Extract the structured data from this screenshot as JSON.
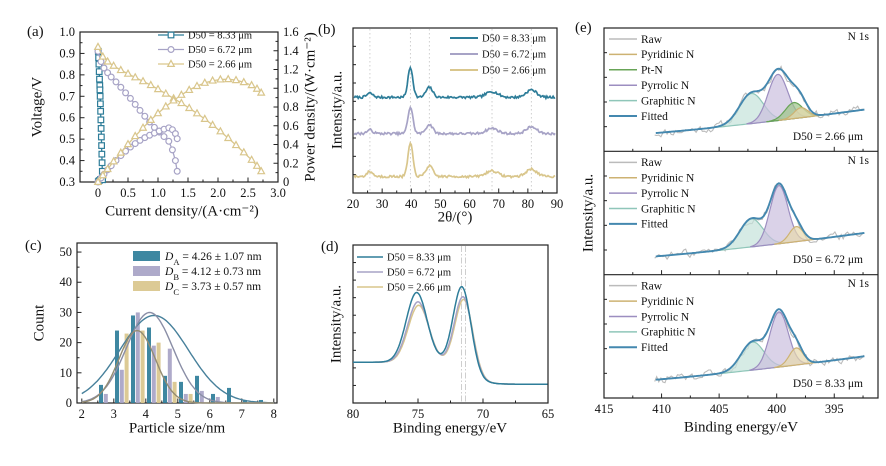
{
  "colors": {
    "teal": "#2E7D99",
    "purple": "#A7A3C6",
    "tan": "#D9C68C",
    "fitted": "#4488AF",
    "raw": "#BBBBBB",
    "mint_fill": "#C5E3DA",
    "mint_stroke": "#8FC6B9",
    "violet_fill": "#CBBFDE",
    "violet_stroke": "#9C8EC0",
    "gold_fill": "#E7D9AC",
    "gold_stroke": "#CDB272",
    "green_fill": "#9CC488",
    "green_stroke": "#68A457",
    "grid": "#C9C9C9",
    "axis": "#222222",
    "curveA": "#47809B",
    "curveB": "#8A8EA6",
    "curveC": "#948C72"
  },
  "chart_data": [
    {
      "panel": "a",
      "letter": "(a)",
      "type": "line",
      "xlabel": "Current density/(A·cm⁻²)",
      "ylabel_left": "Voltage/V",
      "ylabel_right": "Power density/(W·cm⁻²)",
      "xlim": [
        -0.3,
        3.0
      ],
      "xticks": [
        0,
        0.5,
        1.0,
        1.5,
        2.0,
        2.5,
        3.0
      ],
      "xtick_labels": [
        "0",
        "0.5",
        "1.0",
        "1.5",
        "2.0",
        "2.5",
        "3.0"
      ],
      "ylim_left": [
        0.3,
        1.0
      ],
      "yticks_left": [
        0.3,
        0.4,
        0.5,
        0.6,
        0.7,
        0.8,
        0.9,
        1.0
      ],
      "ytick_left_labels": [
        "0.3",
        "0.4",
        "0.5",
        "0.6",
        "0.7",
        "0.8",
        "0.9",
        "1.0"
      ],
      "ylim_right": [
        0,
        1.6
      ],
      "yticks_right": [
        0,
        0.2,
        0.4,
        0.6,
        0.8,
        1.0,
        1.2,
        1.4,
        1.6
      ],
      "ytick_right_labels": [
        "0",
        "0.2",
        "0.4",
        "0.6",
        "0.8",
        "1.0",
        "1.2",
        "1.4",
        "1.6"
      ],
      "legend": [
        "D50 = 8.33 μm",
        "D50 = 6.72 μm",
        "D50 = 2.66 μm"
      ],
      "series": [
        {
          "name": "D50 = 8.33 μm voltage",
          "axis": "left",
          "marker": "square",
          "color_key": "teal",
          "points": [
            [
              0.005,
              0.91
            ],
            [
              0.01,
              0.88
            ],
            [
              0.015,
              0.85
            ],
            [
              0.02,
              0.815
            ],
            [
              0.025,
              0.78
            ],
            [
              0.03,
              0.75
            ],
            [
              0.032,
              0.73
            ],
            [
              0.036,
              0.7
            ],
            [
              0.04,
              0.665
            ],
            [
              0.044,
              0.63
            ],
            [
              0.048,
              0.59
            ],
            [
              0.052,
              0.55
            ],
            [
              0.056,
              0.51
            ],
            [
              0.06,
              0.47
            ],
            [
              0.064,
              0.43
            ],
            [
              0.068,
              0.39
            ],
            [
              0.072,
              0.35
            ],
            [
              0.076,
              0.315
            ]
          ]
        },
        {
          "name": "D50 = 8.33 μm power",
          "axis": "right",
          "marker": "square",
          "color_key": "teal",
          "points": [
            [
              0.005,
              0.004
            ],
            [
              0.02,
              0.015
            ],
            [
              0.04,
              0.026
            ],
            [
              0.06,
              0.029
            ],
            [
              0.076,
              0.024
            ]
          ]
        },
        {
          "name": "D50 = 6.72 μm voltage",
          "axis": "left",
          "marker": "circle",
          "color_key": "purple",
          "points": [
            [
              0,
              0.91
            ],
            [
              0.05,
              0.862
            ],
            [
              0.1,
              0.832
            ],
            [
              0.16,
              0.81
            ],
            [
              0.22,
              0.79
            ],
            [
              0.3,
              0.767
            ],
            [
              0.38,
              0.742
            ],
            [
              0.46,
              0.716
            ],
            [
              0.54,
              0.69
            ],
            [
              0.62,
              0.662
            ],
            [
              0.7,
              0.634
            ],
            [
              0.78,
              0.607
            ],
            [
              0.86,
              0.58
            ],
            [
              0.94,
              0.555
            ],
            [
              1.02,
              0.533
            ],
            [
              1.1,
              0.512
            ],
            [
              1.18,
              0.49
            ],
            [
              1.24,
              0.45
            ],
            [
              1.29,
              0.4
            ],
            [
              1.32,
              0.35
            ]
          ]
        },
        {
          "name": "D50 = 6.72 μm power",
          "axis": "right",
          "marker": "circle",
          "color_key": "purple",
          "points": [
            [
              0,
              0
            ],
            [
              0.05,
              0.043
            ],
            [
              0.1,
              0.083
            ],
            [
              0.16,
              0.13
            ],
            [
              0.22,
              0.174
            ],
            [
              0.3,
              0.23
            ],
            [
              0.38,
              0.282
            ],
            [
              0.46,
              0.329
            ],
            [
              0.54,
              0.373
            ],
            [
              0.62,
              0.41
            ],
            [
              0.7,
              0.444
            ],
            [
              0.78,
              0.473
            ],
            [
              0.86,
              0.499
            ],
            [
              0.94,
              0.522
            ],
            [
              1.02,
              0.544
            ],
            [
              1.1,
              0.563
            ],
            [
              1.18,
              0.578
            ],
            [
              1.24,
              0.558
            ],
            [
              1.29,
              0.516
            ],
            [
              1.32,
              0.462
            ]
          ]
        },
        {
          "name": "D50 = 2.66 μm voltage",
          "axis": "left",
          "marker": "triangle",
          "color_key": "tan",
          "points": [
            [
              0,
              0.93
            ],
            [
              0.08,
              0.885
            ],
            [
              0.16,
              0.862
            ],
            [
              0.26,
              0.842
            ],
            [
              0.38,
              0.822
            ],
            [
              0.5,
              0.805
            ],
            [
              0.62,
              0.788
            ],
            [
              0.75,
              0.77
            ],
            [
              0.88,
              0.752
            ],
            [
              1.0,
              0.733
            ],
            [
              1.13,
              0.712
            ],
            [
              1.26,
              0.69
            ],
            [
              1.39,
              0.668
            ],
            [
              1.52,
              0.645
            ],
            [
              1.65,
              0.62
            ],
            [
              1.78,
              0.594
            ],
            [
              1.91,
              0.566
            ],
            [
              2.04,
              0.536
            ],
            [
              2.17,
              0.505
            ],
            [
              2.3,
              0.472
            ],
            [
              2.43,
              0.438
            ],
            [
              2.56,
              0.403
            ],
            [
              2.65,
              0.375
            ],
            [
              2.72,
              0.35
            ]
          ]
        },
        {
          "name": "D50 = 2.66 μm power",
          "axis": "right",
          "marker": "triangle",
          "color_key": "tan",
          "points": [
            [
              0,
              0
            ],
            [
              0.08,
              0.071
            ],
            [
              0.16,
              0.138
            ],
            [
              0.26,
              0.219
            ],
            [
              0.38,
              0.312
            ],
            [
              0.5,
              0.403
            ],
            [
              0.62,
              0.489
            ],
            [
              0.75,
              0.578
            ],
            [
              0.88,
              0.662
            ],
            [
              1.0,
              0.733
            ],
            [
              1.13,
              0.805
            ],
            [
              1.26,
              0.869
            ],
            [
              1.39,
              0.929
            ],
            [
              1.52,
              0.981
            ],
            [
              1.65,
              1.023
            ],
            [
              1.78,
              1.057
            ],
            [
              1.91,
              1.081
            ],
            [
              2.04,
              1.093
            ],
            [
              2.17,
              1.096
            ],
            [
              2.3,
              1.086
            ],
            [
              2.43,
              1.064
            ],
            [
              2.56,
              1.032
            ],
            [
              2.65,
              0.994
            ],
            [
              2.72,
              0.952
            ]
          ]
        }
      ]
    },
    {
      "panel": "b",
      "letter": "(b)",
      "type": "line",
      "xlabel": "2θ/(°)",
      "ylabel": "Intensity/a.u.",
      "xlim": [
        20,
        90
      ],
      "xticks": [
        20,
        30,
        40,
        50,
        60,
        70,
        80,
        90
      ],
      "xtick_labels": [
        "20",
        "30",
        "40",
        "50",
        "60",
        "70",
        "80",
        "90"
      ],
      "gridlines": [
        25.8,
        39.7,
        46.2,
        67.7,
        81.2
      ],
      "peak_centers": [
        25.8,
        39.7,
        46.2,
        67.7,
        81.2
      ],
      "peak_sigmas": [
        1.0,
        0.85,
        1.15,
        2.0,
        1.8
      ],
      "legend": [
        "D50 = 8.33 μm",
        "D50 = 6.72 μm",
        "D50 = 2.66 μm"
      ],
      "series": [
        {
          "name": "D50 = 8.33 μm",
          "color_key": "teal",
          "offset": 0.58,
          "peak_heights": [
            0.025,
            0.18,
            0.06,
            0.035,
            0.045
          ]
        },
        {
          "name": "D50 = 6.72 μm",
          "color_key": "purple",
          "offset": 0.36,
          "peak_heights": [
            0.022,
            0.16,
            0.055,
            0.032,
            0.04
          ]
        },
        {
          "name": "D50 = 2.66 μm",
          "color_key": "tan",
          "offset": 0.1,
          "peak_heights": [
            0.03,
            0.2,
            0.065,
            0.035,
            0.045
          ]
        }
      ]
    },
    {
      "panel": "c",
      "letter": "(c)",
      "type": "bar",
      "xlabel": "Particle size/nm",
      "ylabel": "Count",
      "xlim": [
        1.85,
        8.1
      ],
      "xticks": [
        2,
        3,
        4,
        5,
        6,
        7,
        8
      ],
      "xtick_labels": [
        "2",
        "3",
        "4",
        "5",
        "6",
        "7",
        "8"
      ],
      "ylim": [
        0,
        53
      ],
      "yticks": [
        0,
        10,
        20,
        30,
        40,
        50
      ],
      "ytick_labels": [
        "0",
        "10",
        "20",
        "30",
        "40",
        "50"
      ],
      "bin_centers": [
        2.75,
        3.25,
        3.75,
        4.25,
        4.75,
        5.25,
        5.75,
        6.25,
        6.75,
        7.25,
        7.75
      ],
      "series": [
        {
          "name": "A",
          "legend": {
            "prefix": "D",
            "sub": "A",
            "text": " = 4.26 ± 1.07 nm"
          },
          "mean": 4.26,
          "sd": 1.07,
          "amp": 29,
          "color_key": "teal",
          "curve_key": "curveA",
          "counts": [
            6,
            24,
            29,
            25,
            9,
            7,
            9,
            3,
            5,
            1,
            1
          ]
        },
        {
          "name": "B",
          "legend": {
            "prefix": "D",
            "sub": "B",
            "text": " = 4.12 ± 0.73 nm"
          },
          "mean": 4.12,
          "sd": 0.73,
          "amp": 30,
          "color_key": "purple",
          "curve_key": "curveB",
          "counts": [
            3,
            11,
            30,
            19,
            18,
            3,
            4,
            2,
            0,
            0,
            0
          ]
        },
        {
          "name": "C",
          "legend": {
            "prefix": "D",
            "sub": "C",
            "text": " = 3.73 ± 0.57 nm"
          },
          "mean": 3.73,
          "sd": 0.57,
          "amp": 24,
          "color_key": "tan",
          "curve_key": "curveC",
          "counts": [
            0,
            23,
            24,
            20,
            7,
            3,
            0,
            0,
            0,
            0,
            0
          ]
        }
      ]
    },
    {
      "panel": "d",
      "letter": "(d)",
      "type": "line",
      "xlabel": "Binding energy/eV",
      "ylabel": "Intensity/a.u.",
      "xlim": [
        80,
        65
      ],
      "xticks": [
        80,
        75,
        70,
        65
      ],
      "xtick_labels": [
        "80",
        "75",
        "70",
        "65"
      ],
      "gridlines": [
        71.65,
        71.35
      ],
      "sigmas": [
        0.8,
        0.68
      ],
      "baseline": {
        "low": 0.055,
        "amp": 0.095,
        "center": 71.0,
        "width": 0.6
      },
      "legend": [
        "D50 = 8.33 μm",
        "D50 = 6.72 μm",
        "D50 = 2.66 μm"
      ],
      "series": [
        {
          "name": "D50 = 8.33 μm",
          "color_key": "teal",
          "peaks": [
            [
              75.1,
              0.3
            ],
            [
              71.6,
              0.35
            ]
          ]
        },
        {
          "name": "D50 = 6.72 μm",
          "color_key": "purple",
          "peaks": [
            [
              75.0,
              0.26
            ],
            [
              71.5,
              0.31
            ]
          ]
        },
        {
          "name": "D50 = 2.66 μm",
          "color_key": "tan",
          "peaks": [
            [
              74.95,
              0.245
            ],
            [
              71.45,
              0.3
            ]
          ]
        }
      ]
    },
    {
      "panel": "e",
      "letter": "(e)",
      "type": "line",
      "xlabel": "Binding energy/eV",
      "ylabel": "Intensity/a.u.",
      "region_label": "N 1s",
      "xlim": [
        415,
        391.2
      ],
      "xticks": [
        415,
        410,
        405,
        400,
        395
      ],
      "xtick_labels": [
        "415",
        "410",
        "405",
        "400",
        "395"
      ],
      "baseline": {
        "start": 0.05,
        "rise": 0.28,
        "span": 23.5,
        "pow": 1.3
      },
      "panels": [
        {
          "sample": "D50 = 2.66 μm",
          "legend": [
            "Raw",
            "Pyridinic N",
            "Pt-N",
            "Pyrrolic N",
            "Graphitic N",
            "Fitted"
          ],
          "components": [
            {
              "name": "Graphitic N",
              "center": 402.2,
              "height": 0.3,
              "sigma": 1.05
            },
            {
              "name": "Pyrrolic N",
              "center": 399.9,
              "height": 0.46,
              "sigma": 0.85
            },
            {
              "name": "Pt-N",
              "center": 398.5,
              "height": 0.16,
              "sigma": 0.75
            },
            {
              "name": "Pyridinic N",
              "center": 397.9,
              "height": 0.1,
              "sigma": 0.6
            }
          ]
        },
        {
          "sample": "D50 = 6.72 μm",
          "legend": [
            "Raw",
            "Pyridinic N",
            "Pyrrolic N",
            "Graphitic N",
            "Fitted"
          ],
          "components": [
            {
              "name": "Graphitic N",
              "center": 402.2,
              "height": 0.28,
              "sigma": 1.0
            },
            {
              "name": "Pyrrolic N",
              "center": 399.8,
              "height": 0.58,
              "sigma": 0.78
            },
            {
              "name": "Pyridinic N",
              "center": 398.3,
              "height": 0.15,
              "sigma": 0.6
            }
          ]
        },
        {
          "sample": "D50 = 8.33 μm",
          "legend": [
            "Raw",
            "Pyridinic N",
            "Pyrrolic N",
            "Graphitic N",
            "Fitted"
          ],
          "components": [
            {
              "name": "Graphitic N",
              "center": 402.1,
              "height": 0.28,
              "sigma": 1.0
            },
            {
              "name": "Pyrrolic N",
              "center": 399.8,
              "height": 0.55,
              "sigma": 0.8
            },
            {
              "name": "Pyridinic N",
              "center": 398.3,
              "height": 0.17,
              "sigma": 0.6
            }
          ]
        }
      ]
    }
  ]
}
